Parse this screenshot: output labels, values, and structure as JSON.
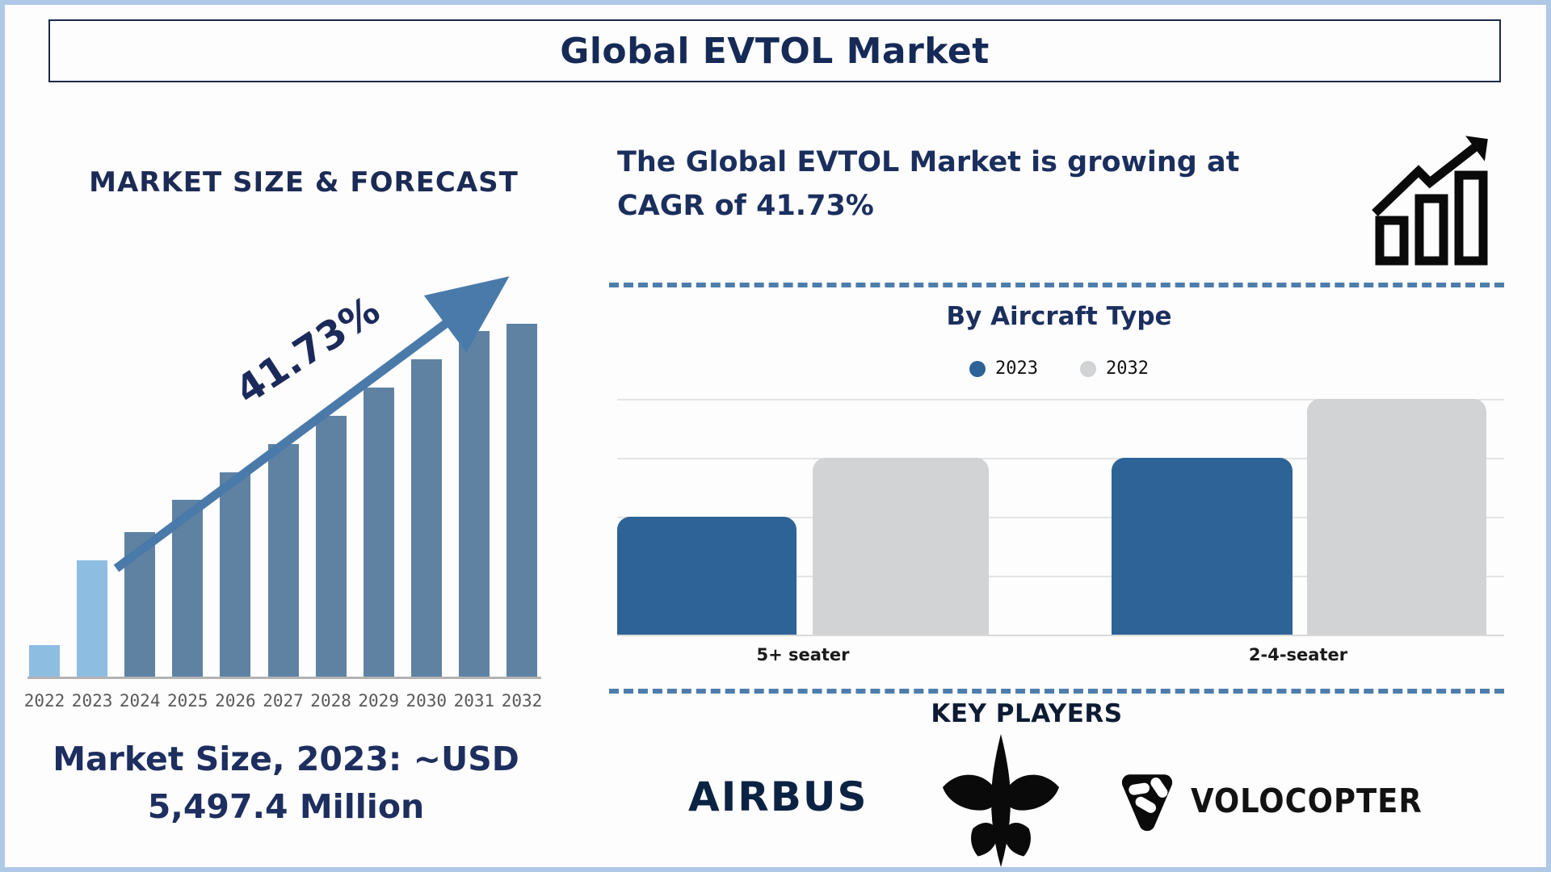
{
  "title": "Global EVTOL Market",
  "left_panel": {
    "heading": "MARKET SIZE & FORECAST",
    "cagr_label": "41.73%",
    "market_size_line1": "Market Size, 2023: ~USD",
    "market_size_line2": "5,497.4 Million"
  },
  "right_panel": {
    "headline_line1": "The Global EVTOL Market is growing at",
    "headline_line2": "CAGR of 41.73%",
    "key_players_heading": "KEY PLAYERS",
    "airbus_label": "AIRBUS",
    "volocopter_label": "VOLOCOPTER"
  },
  "colors": {
    "navy_text": "#1b2f5e",
    "forecast_bar_light": "#8ebde2",
    "forecast_bar_steel": "#5f82a3",
    "arrow_blue": "#4a7aa9",
    "aircraft_bar_2023": "#2d6396",
    "aircraft_bar_2032": "#d2d3d4",
    "divider_blue": "#4e7dac",
    "year_text_gray": "#595959",
    "airbus_navy": "#0b2343"
  },
  "chart_data": [
    {
      "type": "bar",
      "title": "MARKET SIZE & FORECAST",
      "categories": [
        "2022",
        "2023",
        "2024",
        "2025",
        "2026",
        "2027",
        "2028",
        "2029",
        "2030",
        "2031",
        "2032"
      ],
      "values": [
        9,
        33,
        41,
        50,
        58,
        66,
        74,
        82,
        90,
        98,
        100
      ],
      "value_unit": "relative height % (no numeric axis shown in image)",
      "annotation": "41.73%",
      "xlabel": "",
      "ylabel": "",
      "grid": false,
      "highlight_note": "2022 and 2023 bars are light blue; 2024-2032 bars are steel blue; rising arrow labeled 41.73%"
    },
    {
      "type": "bar",
      "title": "By Aircraft Type",
      "categories": [
        "5+ seater",
        "2-4-seater"
      ],
      "series": [
        {
          "name": "2023",
          "values": [
            2,
            3
          ]
        },
        {
          "name": "2032",
          "values": [
            3,
            4
          ]
        }
      ],
      "ylim": [
        0,
        4
      ],
      "value_unit": "relative units read from gridlines (no numeric axis labels shown)",
      "grid": true,
      "legend_position": "top",
      "legend": [
        {
          "label": "2023",
          "color": "#2d6396"
        },
        {
          "label": "2032",
          "color": "#d2d3d4"
        }
      ]
    }
  ]
}
